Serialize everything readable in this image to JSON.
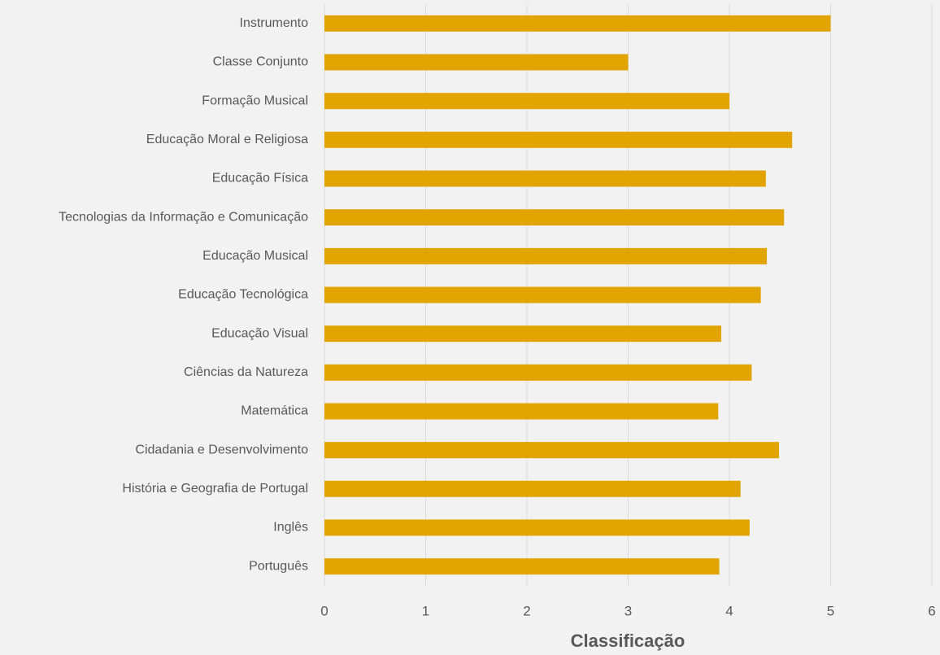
{
  "chart_data": {
    "type": "barh",
    "categories": [
      "Instrumento",
      "Classe Conjunto",
      "Formação Musical",
      "Educação Moral e Religiosa",
      "Educação Física",
      "Tecnologias da Informação e Comunicação",
      "Educação Musical",
      "Educação Tecnológica",
      "Educação Visual",
      "Ciências da Natureza",
      "Matemática",
      "Cidadania e Desenvolvimento",
      "História e Geografia de Portugal",
      "Inglês",
      "Português"
    ],
    "values": [
      5,
      3,
      4,
      4.62,
      4.36,
      4.54,
      4.37,
      4.31,
      3.92,
      4.22,
      3.89,
      4.49,
      4.11,
      4.2,
      3.9
    ],
    "color": "#e2a500",
    "x_label": "Classificação",
    "xlim": [
      0,
      6
    ],
    "xticks": [
      0,
      1,
      2,
      3,
      4,
      5,
      6
    ],
    "grid": true
  }
}
